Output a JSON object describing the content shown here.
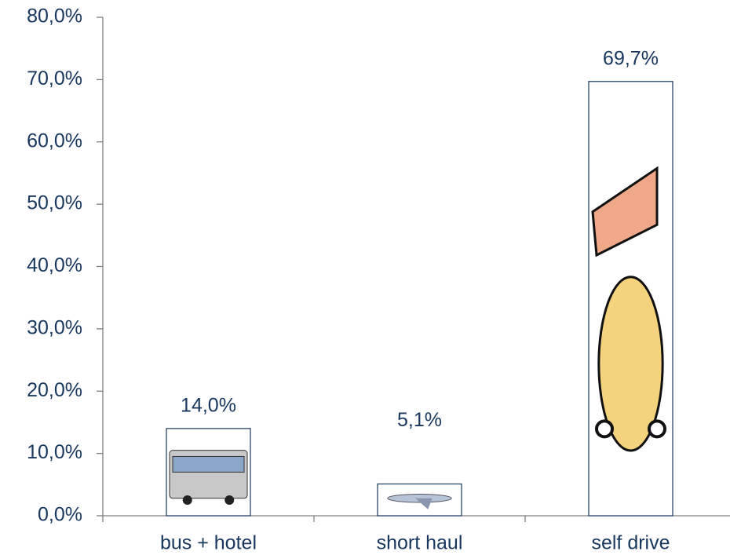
{
  "chart_data": {
    "type": "bar",
    "categories": [
      "bus + hotel",
      "short haul",
      "self drive"
    ],
    "values": [
      14.0,
      5.1,
      69.7
    ],
    "value_labels": [
      "14,0%",
      "5,1%",
      "69,7%"
    ],
    "color": "#ffffff",
    "ylim": [
      0,
      80
    ],
    "yticks": [
      {
        "value": 0,
        "label": "0,0%"
      },
      {
        "value": 10,
        "label": "10,0%"
      },
      {
        "value": 20,
        "label": "20,0%"
      },
      {
        "value": 30,
        "label": "30,0%"
      },
      {
        "value": 40,
        "label": "40,0%"
      },
      {
        "value": 50,
        "label": "50,0%"
      },
      {
        "value": 60,
        "label": "60,0%"
      },
      {
        "value": 70,
        "label": "70,0%"
      },
      {
        "value": 80,
        "label": "80,0%"
      }
    ],
    "grid": false
  }
}
